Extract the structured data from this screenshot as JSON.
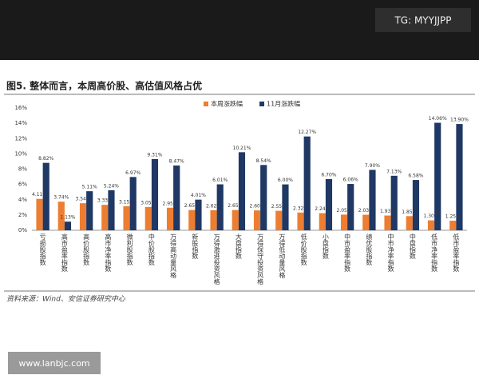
{
  "watermark": "TG: MYYJJPP",
  "footer_url": "www.lanbjc.com",
  "chart_data": {
    "type": "bar",
    "title": "图5. 整体而言，本周高价股、高估值风格占优",
    "source": "资料来源：Wind、安信证券研究中心",
    "categories": [
      "亏损股指数",
      "高市盈率指数",
      "高价股指数",
      "高市净率指数",
      "微利股指数",
      "中价股指数",
      "万得高动量风格",
      "新股指数",
      "万得激进投资风格",
      "大盘指数",
      "万得保守投资风格",
      "万得低动量风格",
      "低价股指数",
      "小盘指数",
      "中市盈率指数",
      "绩优股指数",
      "中市净率指数",
      "中盘指数",
      "低市净率指数",
      "低市盈率指数"
    ],
    "series": [
      {
        "name": "本周涨跌幅",
        "color": "#ED7D31",
        "values": [
          4.11,
          3.74,
          3.54,
          3.33,
          3.15,
          3.05,
          2.95,
          2.65,
          2.62,
          2.65,
          2.6,
          2.55,
          2.32,
          2.24,
          2.05,
          2.03,
          1.93,
          1.85,
          1.3,
          1.25
        ],
        "value_labels": [
          "4.11%",
          "3.74%",
          "3.54%",
          "3.33%",
          "3.15%",
          "3.05%",
          "2.95%",
          "2.65%",
          "2.62%",
          "2.65%",
          "2.60%",
          "2.55%",
          "2.32%",
          "2.24%",
          "2.05%",
          "2.03%",
          "1.93%",
          "1.85%",
          "1.30%",
          "1.25%"
        ]
      },
      {
        "name": "11月涨跌幅",
        "color": "#1F3864",
        "values": [
          8.82,
          1.13,
          5.11,
          5.24,
          6.97,
          9.31,
          8.47,
          4.01,
          6.01,
          10.21,
          8.54,
          6.0,
          12.27,
          6.7,
          6.06,
          7.9,
          7.13,
          6.58,
          14.06,
          13.9
        ],
        "value_labels": [
          "8.82%",
          "1.13%",
          "5.11%",
          "5.24%",
          "6.97%",
          "9.31%",
          "8.47%",
          "4.01%",
          "6.01%",
          "10.21%",
          "8.54%",
          "6.00%",
          "12.27%",
          "6.70%",
          "6.06%",
          "7.90%",
          "7.13%",
          "6.58%",
          "14.06%",
          "13.90%"
        ]
      }
    ],
    "ylim": [
      0,
      16
    ],
    "yticks": [
      {
        "value": 0,
        "label": "0%"
      },
      {
        "value": 2,
        "label": "2%"
      },
      {
        "value": 4,
        "label": "4%"
      },
      {
        "value": 6,
        "label": "6%"
      },
      {
        "value": 8,
        "label": "8%"
      },
      {
        "value": 10,
        "label": "10%"
      },
      {
        "value": 12,
        "label": "12%"
      },
      {
        "value": 14,
        "label": "14%"
      },
      {
        "value": 16,
        "label": "16%"
      }
    ],
    "grid": false
  }
}
